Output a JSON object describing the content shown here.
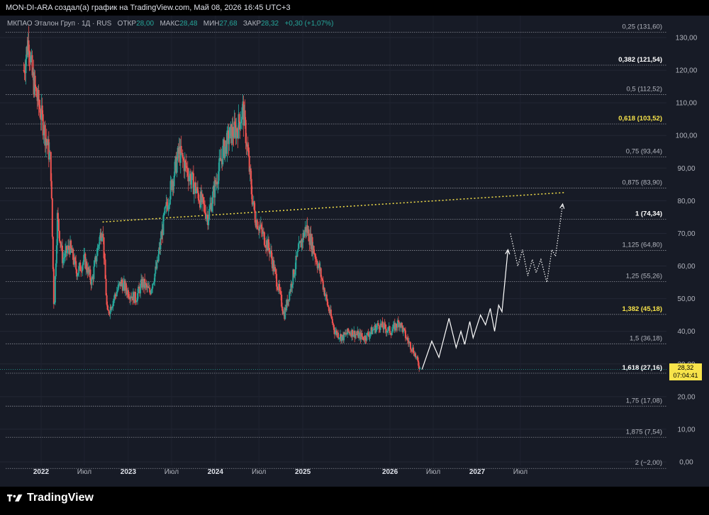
{
  "header": {
    "caption": "MON-DI-ARA создал(а) график на TradingView.com, Май 08, 2026 16:45 UTC+3"
  },
  "legend": {
    "symbol": "МКПАО Эталон Груп · 1Д · RUS",
    "open_label": "ОТКР",
    "open_value": "28,00",
    "high_label": "МАКС",
    "high_value": "28,48",
    "low_label": "МИН",
    "low_value": "27,68",
    "close_label": "ЗАКР",
    "close_value": "28,32",
    "change_value": "+0,30 (+1,07%)"
  },
  "price_tag": {
    "price": "28,32",
    "countdown": "07:04:41",
    "color": "#f7e34a"
  },
  "brand": {
    "name": "TradingView"
  },
  "colors": {
    "background": "#171b26",
    "up": "#26a69a",
    "down": "#ef5350",
    "fib_highlight": "#f7e34a",
    "trendline": "#f7e34a",
    "projection": "#ffffff"
  },
  "chart_data": {
    "type": "candlestick",
    "title": "МКПАО Эталон Груп",
    "timeframe": "1Д",
    "exchange": "RUS",
    "ylim": [
      -2,
      131.6
    ],
    "y_ticks": [
      "0,00",
      "10,00",
      "20,00",
      "30,00",
      "40,00",
      "50,00",
      "60,00",
      "70,00",
      "80,00",
      "90,00",
      "100,00",
      "110,00",
      "120,00",
      "130,00"
    ],
    "y_tick_values": [
      0,
      10,
      20,
      30,
      40,
      50,
      60,
      70,
      80,
      90,
      100,
      110,
      120,
      130
    ],
    "x_ticks": [
      {
        "label": "2022",
        "date": "2022-01-01",
        "bold": true
      },
      {
        "label": "Июл",
        "date": "2022-07-01",
        "bold": false
      },
      {
        "label": "2023",
        "date": "2023-01-01",
        "bold": true
      },
      {
        "label": "Июл",
        "date": "2023-07-01",
        "bold": false
      },
      {
        "label": "2024",
        "date": "2024-01-01",
        "bold": true
      },
      {
        "label": "Июл",
        "date": "2024-07-01",
        "bold": false
      },
      {
        "label": "2025",
        "date": "2025-01-01",
        "bold": true
      },
      {
        "label": "2026",
        "date": "2026-01-01",
        "bold": true
      },
      {
        "label": "Июл",
        "date": "2026-07-01",
        "bold": false
      },
      {
        "label": "2027",
        "date": "2027-01-01",
        "bold": true
      },
      {
        "label": "Июл",
        "date": "2027-07-01",
        "bold": false
      }
    ],
    "fib_levels": [
      {
        "label": "0,25 (131,60)",
        "level": 0.25,
        "price": 131.6,
        "highlight": "none"
      },
      {
        "label": "0,382 (121,54)",
        "level": 0.382,
        "price": 121.54,
        "highlight": "white"
      },
      {
        "label": "0,5 (112,52)",
        "level": 0.5,
        "price": 112.52,
        "highlight": "none"
      },
      {
        "label": "0,618 (103,52)",
        "level": 0.618,
        "price": 103.52,
        "highlight": "yellow"
      },
      {
        "label": "0,75 (93,44)",
        "level": 0.75,
        "price": 93.44,
        "highlight": "none"
      },
      {
        "label": "0,875 (83,90)",
        "level": 0.875,
        "price": 83.9,
        "highlight": "none"
      },
      {
        "label": "1 (74,34)",
        "level": 1,
        "price": 74.34,
        "highlight": "white"
      },
      {
        "label": "1,125 (64,80)",
        "level": 1.125,
        "price": 64.8,
        "highlight": "none"
      },
      {
        "label": "1,25 (55,26)",
        "level": 1.25,
        "price": 55.26,
        "highlight": "none"
      },
      {
        "label": "1,382 (45,18)",
        "level": 1.382,
        "price": 45.18,
        "highlight": "yellow"
      },
      {
        "label": "1,5 (36,18)",
        "level": 1.5,
        "price": 36.18,
        "highlight": "none"
      },
      {
        "label": "1,618 (27,16)",
        "level": 1.618,
        "price": 27.16,
        "highlight": "white"
      },
      {
        "label": "1,75 (17,08)",
        "level": 1.75,
        "price": 17.08,
        "highlight": "none"
      },
      {
        "label": "1,875 (7,54)",
        "level": 1.875,
        "price": 7.54,
        "highlight": "none"
      },
      {
        "label": "2 (−2,00)",
        "level": 2,
        "price": -2.0,
        "highlight": "none"
      }
    ],
    "price_path": [
      [
        "2021-10-20",
        120
      ],
      [
        "2021-11-10",
        130
      ],
      [
        "2021-11-25",
        118
      ],
      [
        "2021-12-20",
        110
      ],
      [
        "2022-01-05",
        105
      ],
      [
        "2022-01-25",
        98
      ],
      [
        "2022-02-10",
        92
      ],
      [
        "2022-02-24",
        46
      ],
      [
        "2022-03-10",
        75
      ],
      [
        "2022-04-01",
        62
      ],
      [
        "2022-05-01",
        66
      ],
      [
        "2022-06-01",
        58
      ],
      [
        "2022-07-01",
        62
      ],
      [
        "2022-08-01",
        55
      ],
      [
        "2022-09-01",
        68
      ],
      [
        "2022-09-15",
        72
      ],
      [
        "2022-10-05",
        45
      ],
      [
        "2022-11-01",
        50
      ],
      [
        "2022-12-01",
        55
      ],
      [
        "2023-01-01",
        52
      ],
      [
        "2023-02-01",
        50
      ],
      [
        "2023-03-01",
        55
      ],
      [
        "2023-04-01",
        52
      ],
      [
        "2023-05-01",
        60
      ],
      [
        "2023-06-01",
        75
      ],
      [
        "2023-07-01",
        85
      ],
      [
        "2023-08-01",
        95
      ],
      [
        "2023-09-01",
        90
      ],
      [
        "2023-10-01",
        85
      ],
      [
        "2023-11-01",
        80
      ],
      [
        "2023-12-01",
        75
      ],
      [
        "2024-01-01",
        85
      ],
      [
        "2024-02-01",
        95
      ],
      [
        "2024-03-01",
        100
      ],
      [
        "2024-04-01",
        102
      ],
      [
        "2024-04-25",
        108
      ],
      [
        "2024-05-15",
        95
      ],
      [
        "2024-06-01",
        82
      ],
      [
        "2024-06-15",
        75
      ],
      [
        "2024-07-15",
        70
      ],
      [
        "2024-08-15",
        65
      ],
      [
        "2024-09-15",
        55
      ],
      [
        "2024-10-15",
        45
      ],
      [
        "2024-11-15",
        55
      ],
      [
        "2024-12-15",
        65
      ],
      [
        "2025-01-15",
        72
      ],
      [
        "2025-02-15",
        65
      ],
      [
        "2025-03-15",
        58
      ],
      [
        "2025-04-15",
        48
      ],
      [
        "2025-05-15",
        40
      ],
      [
        "2025-06-15",
        38
      ],
      [
        "2025-07-15",
        40
      ],
      [
        "2025-09-15",
        38
      ],
      [
        "2025-11-15",
        42
      ],
      [
        "2026-01-05",
        40
      ],
      [
        "2026-02-10",
        43
      ],
      [
        "2026-03-10",
        38
      ],
      [
        "2026-04-10",
        34
      ],
      [
        "2026-05-08",
        28.3
      ]
    ],
    "last_bar": {
      "date": "2026-05-08",
      "open": 28.0,
      "high": 28.48,
      "low": 27.68,
      "close": 28.32,
      "change": 0.3,
      "change_pct": 1.07
    },
    "fib_range": {
      "level_0": "0,25 (131,60)",
      "level_1": "2 (−2,00)"
    },
    "trendline": {
      "style": "dotted",
      "color": "#f7e34a",
      "start": [
        "2022-09-15",
        73.5
      ],
      "end": [
        "2027-12-31",
        82.5
      ]
    },
    "projection_solid": [
      [
        "2026-05-15",
        28.3
      ],
      [
        "2026-06-25",
        37
      ],
      [
        "2026-07-25",
        32
      ],
      [
        "2026-09-05",
        44
      ],
      [
        "2026-10-05",
        35
      ],
      [
        "2026-10-25",
        40
      ],
      [
        "2026-11-10",
        36
      ],
      [
        "2026-12-01",
        43
      ],
      [
        "2026-12-15",
        38
      ],
      [
        "2027-01-15",
        45
      ],
      [
        "2027-02-05",
        42
      ],
      [
        "2027-02-25",
        47
      ],
      [
        "2027-03-15",
        40
      ],
      [
        "2027-04-01",
        48
      ],
      [
        "2027-04-15",
        46
      ],
      [
        "2027-05-10",
        65
      ]
    ],
    "projection_dotted": [
      [
        "2027-05-20",
        70
      ],
      [
        "2027-06-20",
        60
      ],
      [
        "2027-07-10",
        65
      ],
      [
        "2027-08-01",
        57
      ],
      [
        "2027-08-20",
        62
      ],
      [
        "2027-09-05",
        58
      ],
      [
        "2027-09-25",
        62
      ],
      [
        "2027-10-20",
        55
      ],
      [
        "2027-11-10",
        65
      ],
      [
        "2027-11-25",
        63
      ],
      [
        "2027-12-25",
        79
      ]
    ]
  }
}
